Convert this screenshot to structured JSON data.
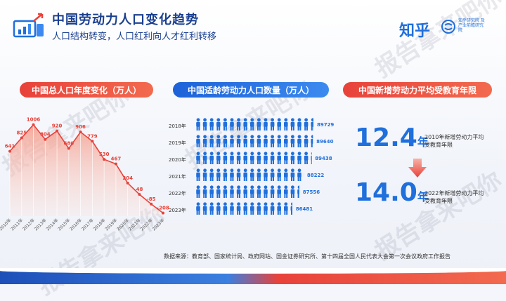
{
  "header": {
    "title": "中国劳动力人口变化趋势",
    "subtitle": "人口结构转变，人口红利向人才红利转移",
    "brand": "知乎",
    "brand_sub": "知乎研究院 及产业前瞻研究院"
  },
  "colors": {
    "red": "#e8423a",
    "blue": "#1f6fdc",
    "navy": "#1a3f8f"
  },
  "watermark": {
    "text": "报告拿来吧你"
  },
  "source": "数据来源：教育部、国家统计局、政府网站、国金证券研究所、第十四届全国人民代表大会第一次会议政府工作报告",
  "chart_data": [
    {
      "type": "area",
      "title": "中国总人口年度变化（万人）",
      "categories": [
        "2010年",
        "2011年",
        "2012年",
        "2013年",
        "2014年",
        "2015年",
        "2016年",
        "2017年",
        "2018年",
        "2019年",
        "2020年",
        "2021年",
        "2022年",
        "2023年"
      ],
      "values": [
        641,
        825,
        1006,
        804,
        920,
        680,
        906,
        779,
        530,
        467,
        204,
        48,
        -85,
        -208
      ],
      "labels": [
        "641",
        "825",
        "1006",
        "804",
        "920",
        "680",
        "906",
        "779",
        "530",
        "467",
        "204",
        "48",
        "-85",
        "-208"
      ],
      "ylim": [
        -250,
        1100
      ]
    },
    {
      "type": "bar",
      "title": "中国适龄劳动力人口数量（万人）",
      "categories": [
        "2018年",
        "2019年",
        "2020年",
        "2021年",
        "2022年",
        "2023年"
      ],
      "values": [
        89729,
        89640,
        89438,
        88222,
        87556,
        86481
      ],
      "labels": [
        "89729",
        "89640",
        "89438",
        "88222",
        "87556",
        "86481"
      ],
      "icon": "person-icon"
    },
    {
      "type": "table",
      "title": "中国新增劳动力平均受教育年限",
      "items": [
        {
          "value": "12.4",
          "unit": "年",
          "note": "2010年新增劳动力平均受教育年限"
        },
        {
          "value": "14.0",
          "unit": "年",
          "note": "2022年新增劳动力平均受教育年限"
        }
      ]
    }
  ]
}
